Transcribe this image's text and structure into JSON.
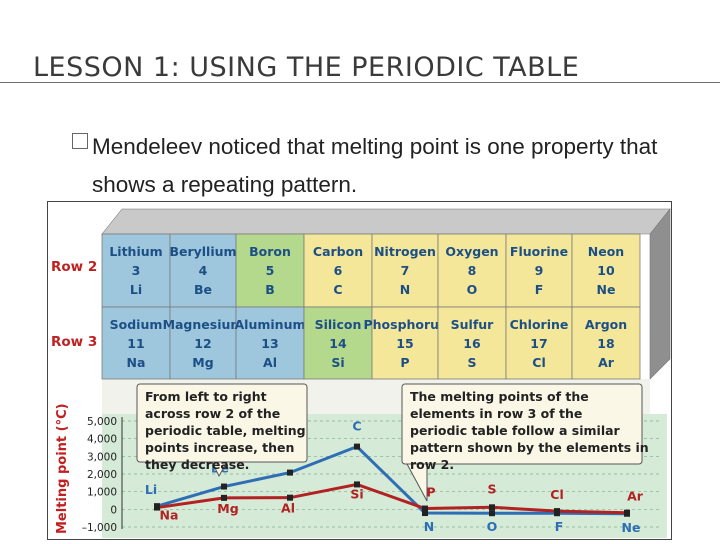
{
  "slide": {
    "title": "LESSON 1: USING THE PERIODIC TABLE",
    "bullet": "Mendeleev noticed that melting point is one property that shows a repeating pattern."
  },
  "table": {
    "row_labels": [
      "Row 2",
      "Row 3"
    ],
    "rows": [
      [
        {
          "name": "Lithium",
          "number": "3",
          "symbol": "Li",
          "color": "#9ec6dc"
        },
        {
          "name": "Beryllium",
          "number": "4",
          "symbol": "Be",
          "color": "#9ec6dc"
        },
        {
          "name": "Boron",
          "number": "5",
          "symbol": "B",
          "color": "#b5d98c"
        },
        {
          "name": "Carbon",
          "number": "6",
          "symbol": "C",
          "color": "#f5e79a"
        },
        {
          "name": "Nitrogen",
          "number": "7",
          "symbol": "N",
          "color": "#f5e79a"
        },
        {
          "name": "Oxygen",
          "number": "8",
          "symbol": "O",
          "color": "#f5e79a"
        },
        {
          "name": "Fluorine",
          "number": "9",
          "symbol": "F",
          "color": "#f5e79a"
        },
        {
          "name": "Neon",
          "number": "10",
          "symbol": "Ne",
          "color": "#f5e79a"
        }
      ],
      [
        {
          "name": "Sodium",
          "number": "11",
          "symbol": "Na",
          "color": "#9ec6dc"
        },
        {
          "name": "Magnesium",
          "number": "12",
          "symbol": "Mg",
          "color": "#9ec6dc"
        },
        {
          "name": "Aluminum",
          "number": "13",
          "symbol": "Al",
          "color": "#9ec6dc"
        },
        {
          "name": "Silicon",
          "number": "14",
          "symbol": "Si",
          "color": "#b5d98c"
        },
        {
          "name": "Phosphorus",
          "number": "15",
          "symbol": "P",
          "color": "#f5e79a"
        },
        {
          "name": "Sulfur",
          "number": "16",
          "symbol": "S",
          "color": "#f5e79a"
        },
        {
          "name": "Chlorine",
          "number": "17",
          "symbol": "Cl",
          "color": "#f5e79a"
        },
        {
          "name": "Argon",
          "number": "18",
          "symbol": "Ar",
          "color": "#f5e79a"
        }
      ]
    ]
  },
  "callouts": [
    "From left to right across row 2 of the periodic table, melting points increase, then they decrease.",
    "The melting points of the elements in row 3 of the periodic table follow a similar pattern shown by the elements in row 2."
  ],
  "chart_data": {
    "type": "line",
    "ylabel": "Melting point (°C)",
    "yticks": [
      "5,000",
      "4,000",
      "3,000",
      "2,000",
      "1,000",
      "0",
      "–1,000"
    ],
    "ylim": [
      -1000,
      5000
    ],
    "grid": true,
    "series": [
      {
        "color": "#2e6eb5",
        "labels": [
          "Li",
          "Be",
          "B",
          "C",
          "N",
          "O",
          "F",
          "Ne"
        ],
        "values": [
          180,
          1290,
          2080,
          3550,
          -210,
          -220,
          -220,
          -250
        ]
      },
      {
        "color": "#b22222",
        "labels": [
          "Na",
          "Mg",
          "Al",
          "Si",
          "P",
          "S",
          "Cl",
          "Ar"
        ],
        "values": [
          100,
          650,
          660,
          1410,
          44,
          115,
          -100,
          -190
        ]
      }
    ]
  }
}
